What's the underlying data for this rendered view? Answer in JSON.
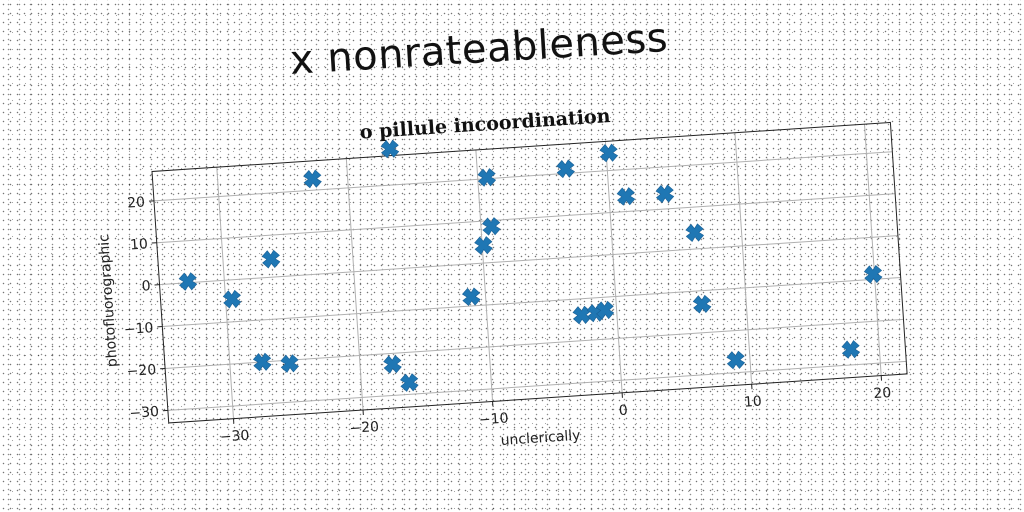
{
  "figure": {
    "title": "x nonrateableness"
  },
  "chart_data": {
    "type": "scatter",
    "title": "o pillule incoordination",
    "xlabel": "unclerically",
    "ylabel": "photofluorographic",
    "xlim": [
      -35,
      22
    ],
    "ylim": [
      -33,
      27
    ],
    "xticks": [
      -30,
      -20,
      -10,
      0,
      10,
      20
    ],
    "yticks": [
      -30,
      -20,
      -10,
      0,
      10,
      20
    ],
    "xtick_labels": [
      "−30",
      "−20",
      "−10",
      "0",
      "10",
      "20"
    ],
    "ytick_labels": [
      "−30",
      "−20",
      "−10",
      "0",
      "10",
      "20"
    ],
    "grid": true,
    "marker": "X",
    "color": "#1f77b4",
    "series": [
      {
        "name": "",
        "points": [
          {
            "x": -32.8,
            "y": 0.3
          },
          {
            "x": -29.5,
            "y": -4.6
          },
          {
            "x": -26.3,
            "y": 4.3
          },
          {
            "x": -22.7,
            "y": 22.7
          },
          {
            "x": -16.6,
            "y": 28.6
          },
          {
            "x": -27.5,
            "y": -20.0
          },
          {
            "x": -25.4,
            "y": -20.8
          },
          {
            "x": -17.5,
            "y": -22.6
          },
          {
            "x": -16.3,
            "y": -27.2
          },
          {
            "x": -11.1,
            "y": -7.8
          },
          {
            "x": -9.9,
            "y": 4.2
          },
          {
            "x": -9.2,
            "y": 8.6
          },
          {
            "x": -9.3,
            "y": 20.3
          },
          {
            "x": -3.2,
            "y": 21.1
          },
          {
            "x": -2.7,
            "y": -13.9
          },
          {
            "x": -1.6,
            "y": -13.6
          },
          {
            "x": -0.9,
            "y": -13.1
          },
          {
            "x": 0.2,
            "y": 24.2
          },
          {
            "x": 1.3,
            "y": 13.6
          },
          {
            "x": 4.3,
            "y": 13.6
          },
          {
            "x": 6.4,
            "y": 3.9
          },
          {
            "x": 6.6,
            "y": -13.2
          },
          {
            "x": 8.9,
            "y": -27.0
          },
          {
            "x": 17.8,
            "y": -26.3
          },
          {
            "x": 19.9,
            "y": -8.8
          }
        ]
      }
    ]
  }
}
